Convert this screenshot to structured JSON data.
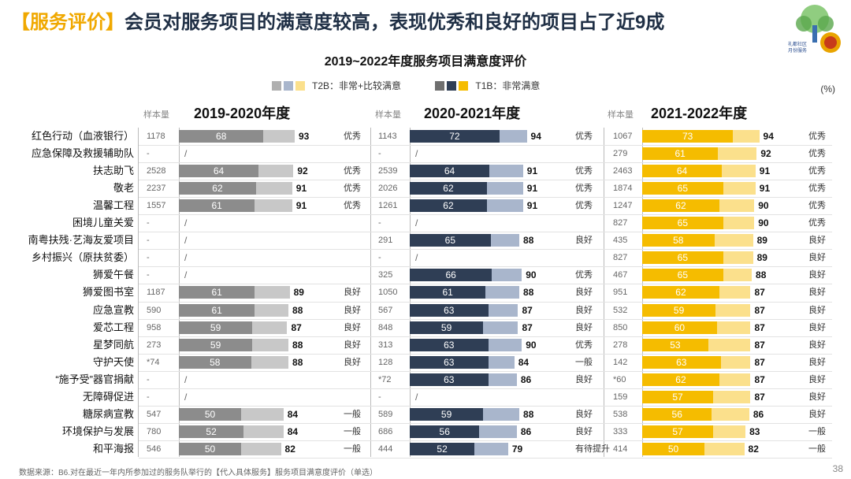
{
  "header": {
    "tag": "【服务评价】",
    "title": "会员对服务项目的满意度较高，表现优秀和良好的项目占了近9成"
  },
  "logo": {
    "text_line1": "礼都社区",
    "text_line2": "月份服务"
  },
  "chart_title": "2019~2022年度服务项目满意度评价",
  "legend": {
    "t2b": "T2B：非常+比较满意",
    "t1b": "T1B：非常满意"
  },
  "unit": "(%)",
  "sample_label": "样本量",
  "colors": {
    "p0_t1b": "#8c8c8c",
    "p0_t2b": "#c8c8c8",
    "p1_t1b": "#2f3e55",
    "p1_t2b": "#a9b6cc",
    "p2_t1b": "#f5bc00",
    "p2_t2b": "#fbe08c",
    "light_gray": "#b0b0b0"
  },
  "chart_data": {
    "type": "bar",
    "title": "2019~2022年度服务项目满意度评价",
    "categories": [
      "红色行动（血液银行）",
      "应急保障及救援辅助队",
      "扶志助飞",
      "敬老",
      "温馨工程",
      "困境儿童关爱",
      "南粤扶残·艺海友爱项目",
      "乡村振兴（原扶贫委）",
      "狮爱午餐",
      "狮爱图书室",
      "应急宣教",
      "爱芯工程",
      "星梦同航",
      "守护天使",
      "“施予受”器官捐献",
      "无障碍促进",
      "糖尿病宣教",
      "环境保护与发展",
      "和平海报"
    ],
    "panels": [
      {
        "name": "2019-2020年度",
        "sample": [
          "1178",
          "-",
          "2528",
          "2237",
          "1557",
          "-",
          "-",
          "-",
          "-",
          "1187",
          "590",
          "958",
          "273",
          "*74",
          "-",
          "-",
          "547",
          "780",
          "546"
        ],
        "t1b": [
          68,
          null,
          64,
          62,
          61,
          null,
          null,
          null,
          null,
          61,
          61,
          59,
          59,
          58,
          null,
          null,
          50,
          52,
          50
        ],
        "t2b": [
          93,
          null,
          92,
          91,
          91,
          null,
          null,
          null,
          null,
          89,
          88,
          87,
          88,
          88,
          null,
          null,
          84,
          84,
          82
        ],
        "rating": [
          "优秀",
          "",
          "优秀",
          "优秀",
          "优秀",
          "",
          "",
          "",
          "",
          "良好",
          "良好",
          "良好",
          "良好",
          "良好",
          "",
          "",
          "一般",
          "一般",
          "一般"
        ]
      },
      {
        "name": "2020-2021年度",
        "sample": [
          "1143",
          "-",
          "2539",
          "2026",
          "1261",
          "-",
          "291",
          "-",
          "325",
          "1050",
          "567",
          "848",
          "313",
          "128",
          "*72",
          "-",
          "589",
          "686",
          "444"
        ],
        "t1b": [
          72,
          null,
          64,
          62,
          62,
          null,
          65,
          null,
          66,
          61,
          63,
          59,
          63,
          63,
          63,
          null,
          59,
          56,
          52
        ],
        "t2b": [
          94,
          null,
          91,
          91,
          91,
          null,
          88,
          null,
          90,
          88,
          87,
          87,
          90,
          84,
          86,
          null,
          88,
          86,
          79
        ],
        "rating": [
          "优秀",
          "",
          "优秀",
          "优秀",
          "优秀",
          "",
          "良好",
          "",
          "优秀",
          "良好",
          "良好",
          "良好",
          "优秀",
          "一般",
          "良好",
          "",
          "良好",
          "良好",
          "有待提升"
        ]
      },
      {
        "name": "2021-2022年度",
        "sample": [
          "1067",
          "279",
          "2463",
          "1874",
          "1247",
          "827",
          "435",
          "827",
          "467",
          "951",
          "532",
          "850",
          "278",
          "142",
          "*60",
          "159",
          "538",
          "333",
          "414"
        ],
        "t1b": [
          73,
          61,
          64,
          65,
          62,
          65,
          58,
          65,
          65,
          62,
          59,
          60,
          53,
          63,
          62,
          57,
          56,
          57,
          50
        ],
        "t2b": [
          94,
          92,
          91,
          91,
          90,
          90,
          89,
          89,
          88,
          87,
          87,
          87,
          87,
          87,
          87,
          87,
          86,
          83,
          82
        ],
        "rating": [
          "优秀",
          "优秀",
          "优秀",
          "优秀",
          "优秀",
          "优秀",
          "良好",
          "良好",
          "良好",
          "良好",
          "良好",
          "良好",
          "良好",
          "良好",
          "良好",
          "良好",
          "良好",
          "一般",
          "一般"
        ]
      }
    ]
  },
  "footer": {
    "source": "数据来源：B6.对在最近一年内所参加过的服务队举行的【代入具体服务】服务项目满意度评价（单选）",
    "page": "38"
  }
}
